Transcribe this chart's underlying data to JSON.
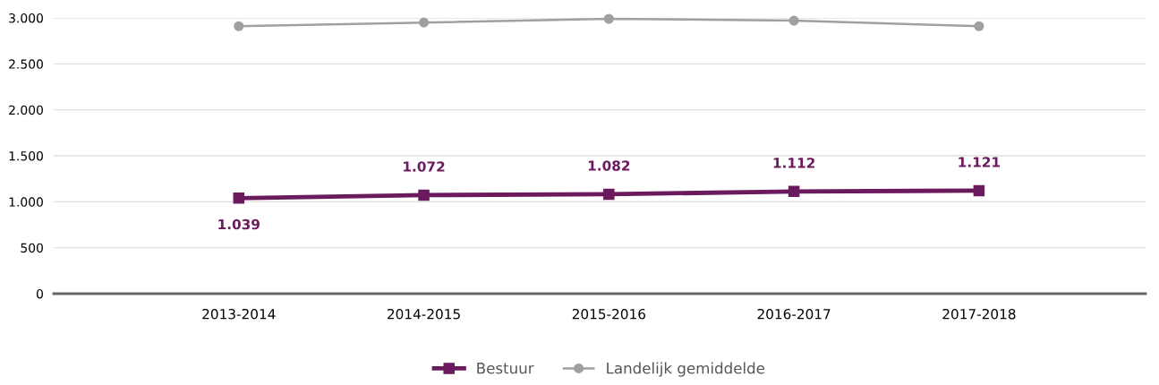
{
  "chart_data": {
    "type": "line",
    "categories": [
      "2013-2014",
      "2014-2015",
      "2015-2016",
      "2016-2017",
      "2017-2018"
    ],
    "series": [
      {
        "name": "Bestuur",
        "color": "#6b1a5e",
        "marker": "square",
        "values": [
          1039,
          1072,
          1082,
          1112,
          1121
        ],
        "value_labels": [
          "1.039",
          "1.072",
          "1.082",
          "1.112",
          "1.121"
        ]
      },
      {
        "name": "Landelijk gemiddelde",
        "color": "#a0a0a0",
        "marker": "circle",
        "values": [
          2910,
          2950,
          2990,
          2970,
          2910
        ]
      }
    ],
    "ylim": [
      0,
      3000
    ],
    "yticks": [
      {
        "value": 0,
        "label": "0"
      },
      {
        "value": 500,
        "label": "500"
      },
      {
        "value": 1000,
        "label": "1.000"
      },
      {
        "value": 1500,
        "label": "1.500"
      },
      {
        "value": 2000,
        "label": "2.000"
      },
      {
        "value": 2500,
        "label": "2.500"
      },
      {
        "value": 3000,
        "label": "3.000"
      }
    ],
    "grid": "y",
    "legend": "bottom",
    "line_style": "solid"
  }
}
